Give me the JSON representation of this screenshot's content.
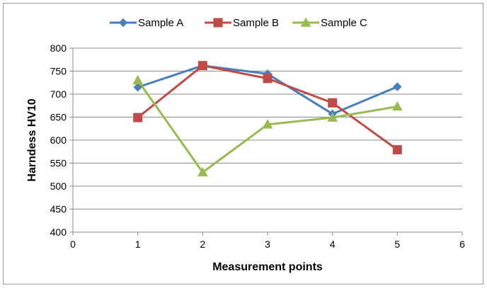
{
  "chart_data": {
    "type": "line",
    "xlabel": "Measurement points",
    "ylabel": "Harndess HV10",
    "xlim": [
      0,
      6
    ],
    "ylim": [
      400,
      800
    ],
    "x_ticks": [
      0,
      1,
      2,
      3,
      4,
      5,
      6
    ],
    "y_ticks": [
      400,
      450,
      500,
      550,
      600,
      650,
      700,
      750,
      800
    ],
    "grid": "horizontal",
    "legend_position": "top",
    "series": [
      {
        "name": "Sample A",
        "color": "#4a7ebb",
        "marker": "diamond",
        "x": [
          1,
          2,
          3,
          4,
          5
        ],
        "y": [
          715,
          762,
          744,
          657,
          716
        ]
      },
      {
        "name": "Sample B",
        "color": "#be4b48",
        "marker": "square",
        "x": [
          1,
          2,
          3,
          4,
          5
        ],
        "y": [
          649,
          762,
          734,
          681,
          579
        ]
      },
      {
        "name": "Sample C",
        "color": "#98b954",
        "marker": "triangle",
        "x": [
          1,
          2,
          3,
          4,
          5
        ],
        "y": [
          730,
          530,
          634,
          649,
          673
        ]
      }
    ]
  }
}
